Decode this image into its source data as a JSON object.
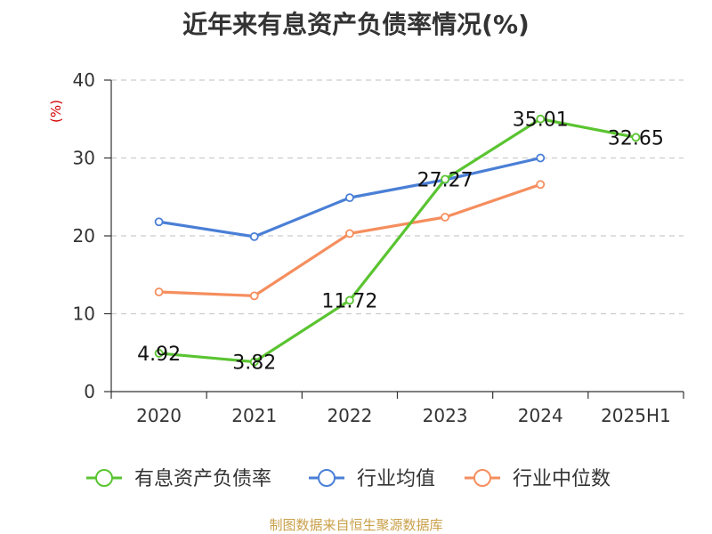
{
  "chart_data": {
    "type": "line",
    "title": "近年来有息资产负债率情况(%)",
    "ylabel": "(%)",
    "xlabel": "",
    "categories": [
      "2020",
      "2021",
      "2022",
      "2023",
      "2024",
      "2025H1"
    ],
    "ylim": [
      0,
      40
    ],
    "yticks": [
      0,
      10,
      20,
      30,
      40
    ],
    "grid": true,
    "legend_position": "bottom",
    "series": [
      {
        "name": "有息资产负债率",
        "color": "#5ac431",
        "values": [
          4.92,
          3.82,
          11.72,
          27.27,
          35.01,
          32.65
        ],
        "labels": [
          "4.92",
          "3.82",
          "11.72",
          "27.27",
          "35.01",
          "32.65"
        ]
      },
      {
        "name": "行业均值",
        "color": "#4a7fd6",
        "values": [
          21.8,
          19.9,
          24.9,
          27.2,
          30.0,
          null
        ]
      },
      {
        "name": "行业中位数",
        "color": "#f58e5e",
        "values": [
          12.8,
          12.3,
          20.3,
          22.4,
          26.6,
          null
        ]
      }
    ],
    "source": "制图数据来自恒生聚源数据库",
    "ylabel_color": "#d40000",
    "source_color": "#c9a04a"
  }
}
